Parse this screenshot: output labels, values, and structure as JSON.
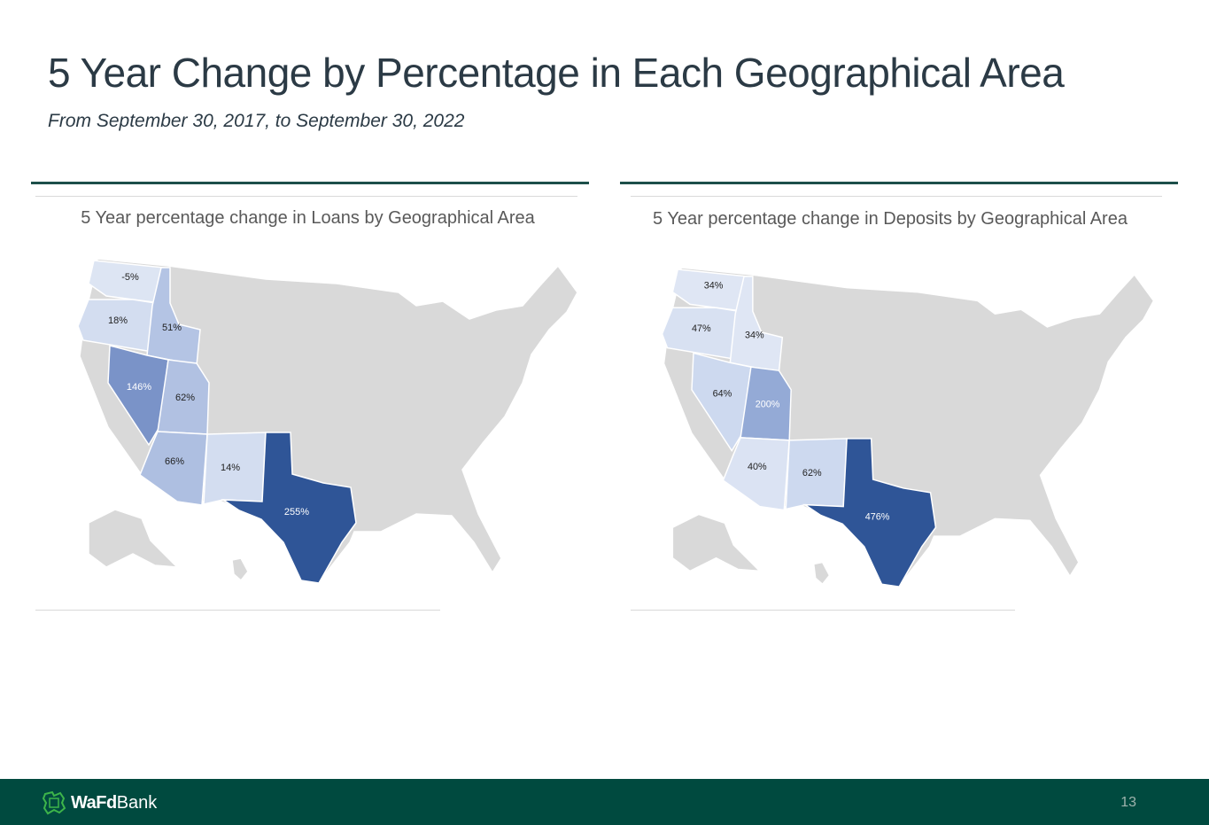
{
  "header": {
    "title": "5 Year Change by Percentage in Each Geographical Area",
    "subtitle": "From September 30, 2017, to September 30, 2022"
  },
  "chart_data": [
    {
      "type": "choropleth-map",
      "title": "5 Year percentage change in Loans by Geographical Area",
      "regions": [
        {
          "state": "WA",
          "label": "-5%",
          "value": -5,
          "color": "#dde5f3",
          "text_color": "#222222"
        },
        {
          "state": "OR",
          "label": "18%",
          "value": 18,
          "color": "#d3ddf0",
          "text_color": "#222222"
        },
        {
          "state": "ID",
          "label": "51%",
          "value": 51,
          "color": "#b4c4e4",
          "text_color": "#222222"
        },
        {
          "state": "NV",
          "label": "146%",
          "value": 146,
          "color": "#7a93c8",
          "text_color": "#ffffff"
        },
        {
          "state": "UT",
          "label": "62%",
          "value": 62,
          "color": "#b1c1e2",
          "text_color": "#222222"
        },
        {
          "state": "AZ",
          "label": "66%",
          "value": 66,
          "color": "#aebfe1",
          "text_color": "#222222"
        },
        {
          "state": "NM",
          "label": "14%",
          "value": 14,
          "color": "#d3ddf0",
          "text_color": "#222222"
        },
        {
          "state": "TX",
          "label": "255%",
          "value": 255,
          "color": "#2f5597",
          "text_color": "#ffffff"
        }
      ]
    },
    {
      "type": "choropleth-map",
      "title": "5 Year percentage change in Deposits by Geographical Area",
      "regions": [
        {
          "state": "WA",
          "label": "34%",
          "value": 34,
          "color": "#dfe6f4",
          "text_color": "#222222"
        },
        {
          "state": "OR",
          "label": "47%",
          "value": 47,
          "color": "#d8e1f2",
          "text_color": "#222222"
        },
        {
          "state": "ID",
          "label": "34%",
          "value": 34,
          "color": "#dfe6f4",
          "text_color": "#222222"
        },
        {
          "state": "NV",
          "label": "64%",
          "value": 64,
          "color": "#cdd9ef",
          "text_color": "#222222"
        },
        {
          "state": "UT",
          "label": "200%",
          "value": 200,
          "color": "#94aad6",
          "text_color": "#ffffff"
        },
        {
          "state": "AZ",
          "label": "40%",
          "value": 40,
          "color": "#dbe3f3",
          "text_color": "#222222"
        },
        {
          "state": "NM",
          "label": "62%",
          "value": 62,
          "color": "#cdd9ef",
          "text_color": "#222222"
        },
        {
          "state": "TX",
          "label": "476%",
          "value": 476,
          "color": "#2f5597",
          "text_color": "#ffffff"
        }
      ]
    }
  ],
  "colors": {
    "base_land": "#d9d9d9",
    "footer": "#004a3f",
    "rule": "#1d4f4a"
  },
  "footer": {
    "brand_bold": "WaFd",
    "brand_light": "Bank",
    "page_number": "13"
  }
}
